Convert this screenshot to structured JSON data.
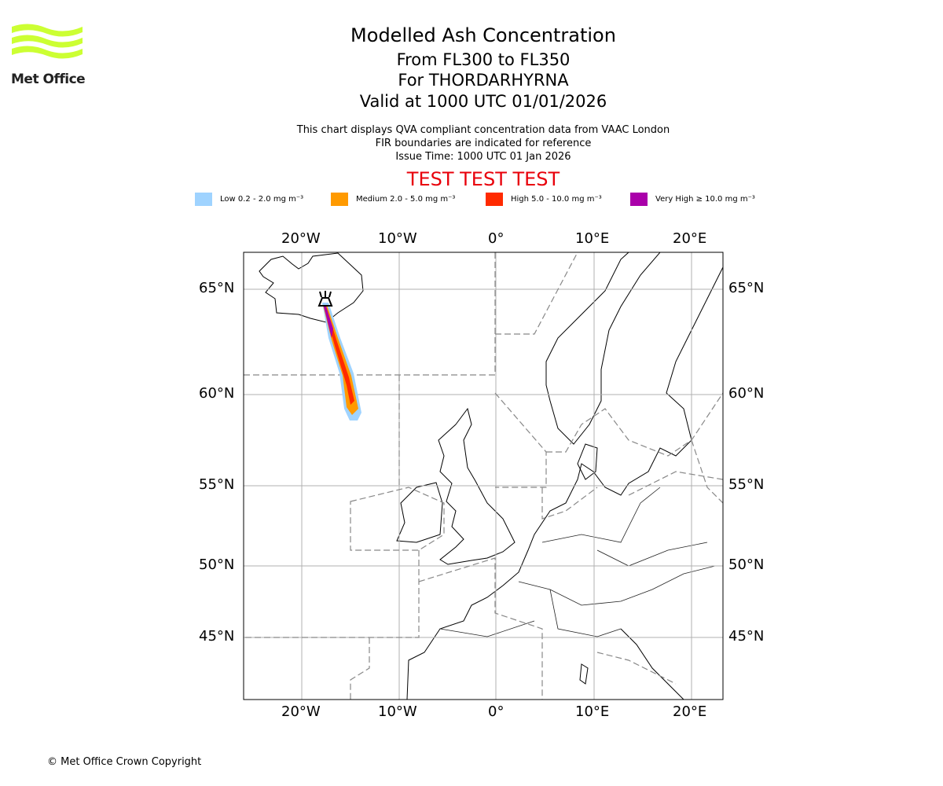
{
  "header": {
    "title": "Modelled Ash Concentration",
    "levels": "From FL300 to FL350",
    "volcano": "For THORDARHYRNA",
    "valid": "Valid at 1000 UTC 01/01/2026",
    "note1": "This chart displays QVA compliant concentration data from VAAC London",
    "note2": "FIR boundaries are indicated for reference",
    "issue": "Issue Time: 1000 UTC 01 Jan 2026",
    "test_banner": "TEST TEST TEST"
  },
  "logo": {
    "text": "Met Office"
  },
  "legend": [
    {
      "label": "Low 0.2 - 2.0 mg m⁻³",
      "color": "#9fd3ff"
    },
    {
      "label": "Medium 2.0 - 5.0 mg m⁻³",
      "color": "#ff9a00"
    },
    {
      "label": "High 5.0 - 10.0 mg m⁻³",
      "color": "#ff2a00"
    },
    {
      "label": "Very High ≥ 10.0 mg m⁻³",
      "color": "#aa00aa"
    }
  ],
  "map": {
    "lon_ticks": [
      "20°W",
      "10°W",
      "0°",
      "10°E",
      "20°E"
    ],
    "lat_ticks": [
      "65°N",
      "60°N",
      "55°N",
      "50°N",
      "45°N"
    ],
    "volcano_icon": "volcano-icon"
  },
  "footer": {
    "copyright": "© Met Office Crown Copyright"
  }
}
